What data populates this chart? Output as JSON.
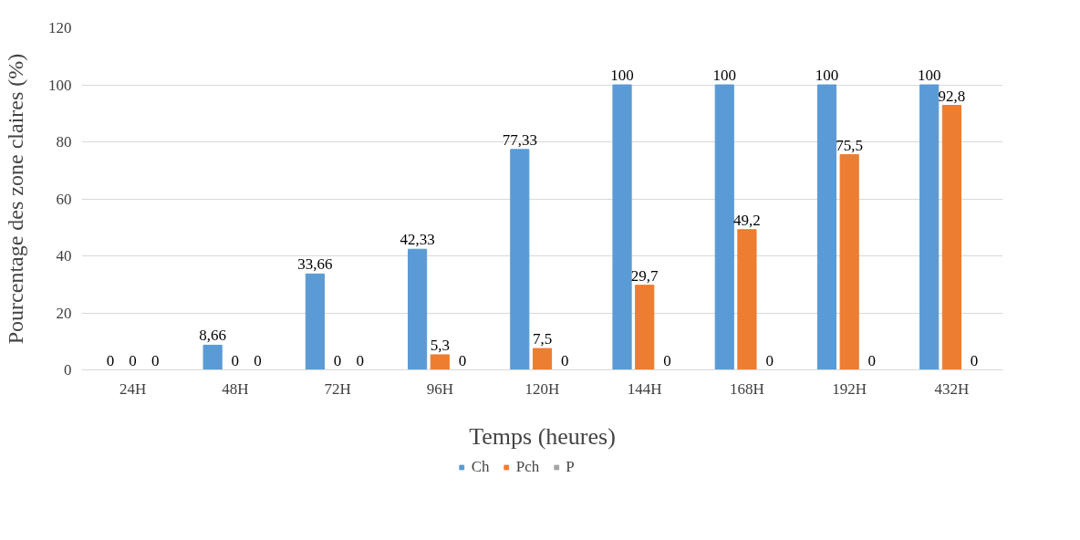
{
  "chart_data": {
    "type": "bar",
    "xlabel": "Temps (heures)",
    "ylabel": "Pourcentage des zone claires (%)",
    "categories": [
      "24H",
      "48H",
      "72H",
      "96H",
      "120H",
      "144H",
      "168H",
      "192H",
      "432H"
    ],
    "series": [
      {
        "name": "Ch",
        "color": "#5b9bd5",
        "values": [
          0,
          8.66,
          33.66,
          42.33,
          77.33,
          100,
          100,
          100,
          100
        ],
        "value_labels": [
          "0",
          "8,66",
          "33,66",
          "42,33",
          "77,33",
          "100",
          "100",
          "100",
          "100"
        ]
      },
      {
        "name": "Pch",
        "color": "#ed7d31",
        "values": [
          0,
          0,
          0,
          5.3,
          7.5,
          29.7,
          49.2,
          75.5,
          92.8
        ],
        "value_labels": [
          "0",
          "0",
          "0",
          "5,3",
          "7,5",
          "29,7",
          "49,2",
          "75,5",
          "92,8"
        ]
      },
      {
        "name": "P",
        "color": "#a5a5a5",
        "values": [
          0,
          0,
          0,
          0,
          0,
          0,
          0,
          0,
          0
        ],
        "value_labels": [
          "0",
          "0",
          "0",
          "0",
          "0",
          "0",
          "0",
          "0",
          "0"
        ]
      }
    ],
    "ylim": [
      0,
      120
    ],
    "yticks": [
      0,
      20,
      40,
      60,
      80,
      100,
      120
    ],
    "grid": "y",
    "legend": "bottom"
  }
}
